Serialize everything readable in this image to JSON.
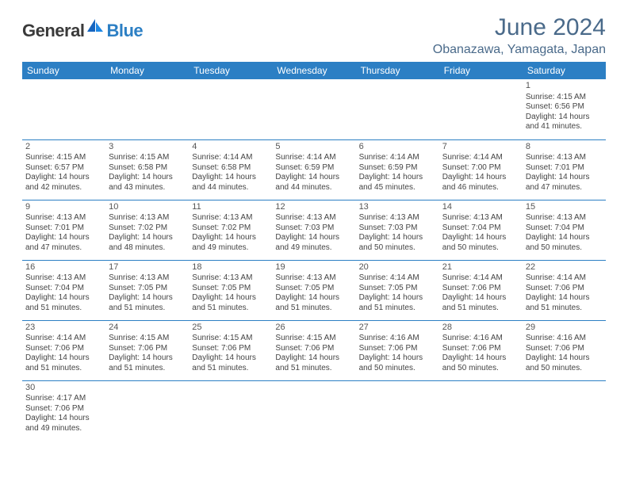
{
  "logo": {
    "text1": "General",
    "text2": "Blue"
  },
  "title": "June 2024",
  "location": "Obanazawa, Yamagata, Japan",
  "colors": {
    "header_bg": "#2c7fc4",
    "title_color": "#4a6a8a",
    "border": "#2c7fc4"
  },
  "day_headers": [
    "Sunday",
    "Monday",
    "Tuesday",
    "Wednesday",
    "Thursday",
    "Friday",
    "Saturday"
  ],
  "weeks": [
    [
      null,
      null,
      null,
      null,
      null,
      null,
      {
        "d": "1",
        "sr": "Sunrise: 4:15 AM",
        "ss": "Sunset: 6:56 PM",
        "dl1": "Daylight: 14 hours",
        "dl2": "and 41 minutes."
      }
    ],
    [
      {
        "d": "2",
        "sr": "Sunrise: 4:15 AM",
        "ss": "Sunset: 6:57 PM",
        "dl1": "Daylight: 14 hours",
        "dl2": "and 42 minutes."
      },
      {
        "d": "3",
        "sr": "Sunrise: 4:15 AM",
        "ss": "Sunset: 6:58 PM",
        "dl1": "Daylight: 14 hours",
        "dl2": "and 43 minutes."
      },
      {
        "d": "4",
        "sr": "Sunrise: 4:14 AM",
        "ss": "Sunset: 6:58 PM",
        "dl1": "Daylight: 14 hours",
        "dl2": "and 44 minutes."
      },
      {
        "d": "5",
        "sr": "Sunrise: 4:14 AM",
        "ss": "Sunset: 6:59 PM",
        "dl1": "Daylight: 14 hours",
        "dl2": "and 44 minutes."
      },
      {
        "d": "6",
        "sr": "Sunrise: 4:14 AM",
        "ss": "Sunset: 6:59 PM",
        "dl1": "Daylight: 14 hours",
        "dl2": "and 45 minutes."
      },
      {
        "d": "7",
        "sr": "Sunrise: 4:14 AM",
        "ss": "Sunset: 7:00 PM",
        "dl1": "Daylight: 14 hours",
        "dl2": "and 46 minutes."
      },
      {
        "d": "8",
        "sr": "Sunrise: 4:13 AM",
        "ss": "Sunset: 7:01 PM",
        "dl1": "Daylight: 14 hours",
        "dl2": "and 47 minutes."
      }
    ],
    [
      {
        "d": "9",
        "sr": "Sunrise: 4:13 AM",
        "ss": "Sunset: 7:01 PM",
        "dl1": "Daylight: 14 hours",
        "dl2": "and 47 minutes."
      },
      {
        "d": "10",
        "sr": "Sunrise: 4:13 AM",
        "ss": "Sunset: 7:02 PM",
        "dl1": "Daylight: 14 hours",
        "dl2": "and 48 minutes."
      },
      {
        "d": "11",
        "sr": "Sunrise: 4:13 AM",
        "ss": "Sunset: 7:02 PM",
        "dl1": "Daylight: 14 hours",
        "dl2": "and 49 minutes."
      },
      {
        "d": "12",
        "sr": "Sunrise: 4:13 AM",
        "ss": "Sunset: 7:03 PM",
        "dl1": "Daylight: 14 hours",
        "dl2": "and 49 minutes."
      },
      {
        "d": "13",
        "sr": "Sunrise: 4:13 AM",
        "ss": "Sunset: 7:03 PM",
        "dl1": "Daylight: 14 hours",
        "dl2": "and 50 minutes."
      },
      {
        "d": "14",
        "sr": "Sunrise: 4:13 AM",
        "ss": "Sunset: 7:04 PM",
        "dl1": "Daylight: 14 hours",
        "dl2": "and 50 minutes."
      },
      {
        "d": "15",
        "sr": "Sunrise: 4:13 AM",
        "ss": "Sunset: 7:04 PM",
        "dl1": "Daylight: 14 hours",
        "dl2": "and 50 minutes."
      }
    ],
    [
      {
        "d": "16",
        "sr": "Sunrise: 4:13 AM",
        "ss": "Sunset: 7:04 PM",
        "dl1": "Daylight: 14 hours",
        "dl2": "and 51 minutes."
      },
      {
        "d": "17",
        "sr": "Sunrise: 4:13 AM",
        "ss": "Sunset: 7:05 PM",
        "dl1": "Daylight: 14 hours",
        "dl2": "and 51 minutes."
      },
      {
        "d": "18",
        "sr": "Sunrise: 4:13 AM",
        "ss": "Sunset: 7:05 PM",
        "dl1": "Daylight: 14 hours",
        "dl2": "and 51 minutes."
      },
      {
        "d": "19",
        "sr": "Sunrise: 4:13 AM",
        "ss": "Sunset: 7:05 PM",
        "dl1": "Daylight: 14 hours",
        "dl2": "and 51 minutes."
      },
      {
        "d": "20",
        "sr": "Sunrise: 4:14 AM",
        "ss": "Sunset: 7:05 PM",
        "dl1": "Daylight: 14 hours",
        "dl2": "and 51 minutes."
      },
      {
        "d": "21",
        "sr": "Sunrise: 4:14 AM",
        "ss": "Sunset: 7:06 PM",
        "dl1": "Daylight: 14 hours",
        "dl2": "and 51 minutes."
      },
      {
        "d": "22",
        "sr": "Sunrise: 4:14 AM",
        "ss": "Sunset: 7:06 PM",
        "dl1": "Daylight: 14 hours",
        "dl2": "and 51 minutes."
      }
    ],
    [
      {
        "d": "23",
        "sr": "Sunrise: 4:14 AM",
        "ss": "Sunset: 7:06 PM",
        "dl1": "Daylight: 14 hours",
        "dl2": "and 51 minutes."
      },
      {
        "d": "24",
        "sr": "Sunrise: 4:15 AM",
        "ss": "Sunset: 7:06 PM",
        "dl1": "Daylight: 14 hours",
        "dl2": "and 51 minutes."
      },
      {
        "d": "25",
        "sr": "Sunrise: 4:15 AM",
        "ss": "Sunset: 7:06 PM",
        "dl1": "Daylight: 14 hours",
        "dl2": "and 51 minutes."
      },
      {
        "d": "26",
        "sr": "Sunrise: 4:15 AM",
        "ss": "Sunset: 7:06 PM",
        "dl1": "Daylight: 14 hours",
        "dl2": "and 51 minutes."
      },
      {
        "d": "27",
        "sr": "Sunrise: 4:16 AM",
        "ss": "Sunset: 7:06 PM",
        "dl1": "Daylight: 14 hours",
        "dl2": "and 50 minutes."
      },
      {
        "d": "28",
        "sr": "Sunrise: 4:16 AM",
        "ss": "Sunset: 7:06 PM",
        "dl1": "Daylight: 14 hours",
        "dl2": "and 50 minutes."
      },
      {
        "d": "29",
        "sr": "Sunrise: 4:16 AM",
        "ss": "Sunset: 7:06 PM",
        "dl1": "Daylight: 14 hours",
        "dl2": "and 50 minutes."
      }
    ],
    [
      {
        "d": "30",
        "sr": "Sunrise: 4:17 AM",
        "ss": "Sunset: 7:06 PM",
        "dl1": "Daylight: 14 hours",
        "dl2": "and 49 minutes."
      },
      null,
      null,
      null,
      null,
      null,
      null
    ]
  ]
}
